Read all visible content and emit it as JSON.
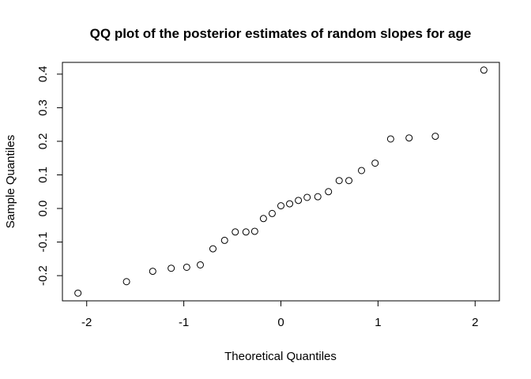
{
  "chart_data": {
    "type": "scatter",
    "title": "QQ plot of the posterior estimates of random slopes for age",
    "xlabel": "Theoretical Quantiles",
    "ylabel": "Sample Quantiles",
    "xlim": [
      -2.25,
      2.25
    ],
    "ylim": [
      -0.275,
      0.435
    ],
    "x_ticks": [
      -2,
      -1,
      0,
      1,
      2
    ],
    "x_tick_labels": [
      "-2",
      "-1",
      "0",
      "1",
      "2"
    ],
    "y_ticks": [
      -0.2,
      -0.1,
      0.0,
      0.1,
      0.2,
      0.3,
      0.4
    ],
    "y_tick_labels": [
      "-0.2",
      "-0.1",
      "0.0",
      "0.1",
      "0.2",
      "0.3",
      "0.4"
    ],
    "grid": false,
    "marker": "open-circle",
    "point_color": "#000000",
    "points": [
      {
        "x": -2.09,
        "y": -0.252
      },
      {
        "x": -1.59,
        "y": -0.218
      },
      {
        "x": -1.32,
        "y": -0.187
      },
      {
        "x": -1.13,
        "y": -0.178
      },
      {
        "x": -0.97,
        "y": -0.175
      },
      {
        "x": -0.83,
        "y": -0.168
      },
      {
        "x": -0.7,
        "y": -0.12
      },
      {
        "x": -0.58,
        "y": -0.095
      },
      {
        "x": -0.47,
        "y": -0.07
      },
      {
        "x": -0.36,
        "y": -0.07
      },
      {
        "x": -0.27,
        "y": -0.068
      },
      {
        "x": -0.18,
        "y": -0.03
      },
      {
        "x": -0.09,
        "y": -0.015
      },
      {
        "x": 0.0,
        "y": 0.008
      },
      {
        "x": 0.09,
        "y": 0.014
      },
      {
        "x": 0.18,
        "y": 0.024
      },
      {
        "x": 0.27,
        "y": 0.033
      },
      {
        "x": 0.38,
        "y": 0.035
      },
      {
        "x": 0.49,
        "y": 0.05
      },
      {
        "x": 0.6,
        "y": 0.083
      },
      {
        "x": 0.7,
        "y": 0.083
      },
      {
        "x": 0.83,
        "y": 0.113
      },
      {
        "x": 0.97,
        "y": 0.135
      },
      {
        "x": 1.13,
        "y": 0.207
      },
      {
        "x": 1.32,
        "y": 0.21
      },
      {
        "x": 1.59,
        "y": 0.215
      },
      {
        "x": 2.09,
        "y": 0.412
      }
    ]
  }
}
